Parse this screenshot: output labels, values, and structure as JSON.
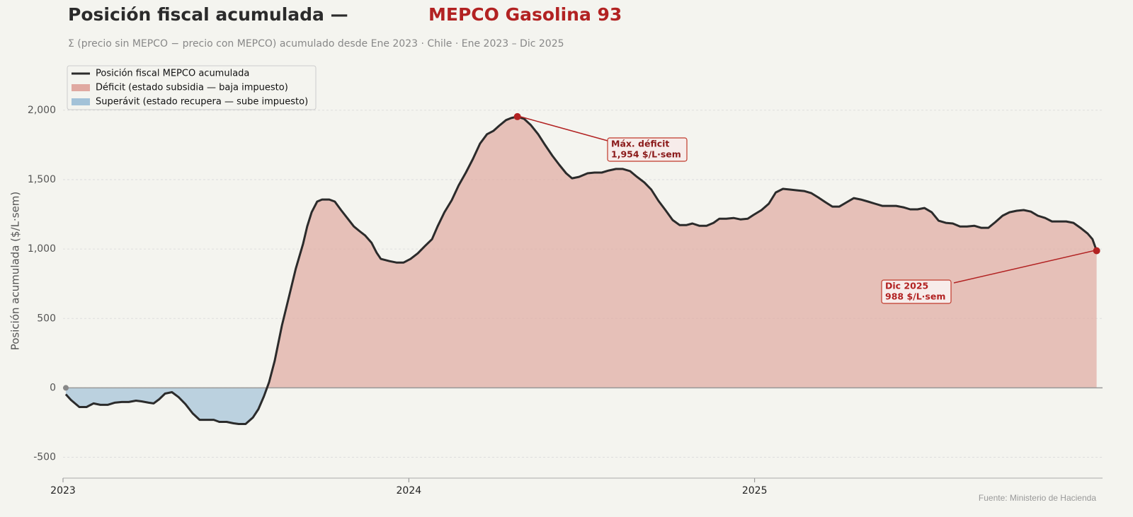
{
  "chart_data": {
    "type": "area_line",
    "title": "Posición fiscal acumulada —",
    "title_highlight": "MEPCO Gasolina 93",
    "subtitle": "Σ (precio sin MEPCO − precio con MEPCO) acumulado desde Ene 2023  ·  Chile  ·  Ene 2023 – Dic 2025",
    "y_label": "Posición acumulada ($/L·sem)",
    "source": "Fuente: Ministerio de Hacienda",
    "xlim": [
      2023,
      2026
    ],
    "xticks": [
      2023,
      2024,
      2025
    ],
    "ylim": [
      -650,
      2300
    ],
    "yticks": [
      {
        "value": -500,
        "label": "-500"
      },
      0,
      500,
      {
        "value": 1000,
        "label": "1,000"
      },
      {
        "value": 1500,
        "label": "1,500"
      },
      {
        "value": 2000,
        "label": "2,000"
      }
    ],
    "grid": true,
    "legend_position": "upper left",
    "legend": [
      {
        "name": "Posición fiscal MEPCO acumulada",
        "color": "#2b2b2b"
      },
      {
        "name": "Déficit (estado subsidia — baja impuesto)",
        "color": "#e0a9a1"
      },
      {
        "name": "Superávit (estado recupera — sube impuesto)",
        "color": "#a3c2d8"
      }
    ],
    "annotations": [
      {
        "lines": [
          "Máx. déficit",
          "1,954 $/L·sem"
        ],
        "color": "#8b1a1a"
      },
      {
        "lines": [
          "Dic 2025",
          "988 $/L·sem"
        ],
        "color": "#b22222"
      }
    ],
    "x": [
      2023.008,
      2023.023,
      2023.047,
      2023.068,
      2023.088,
      2023.108,
      2023.129,
      2023.149,
      2023.17,
      2023.19,
      2023.211,
      2023.227,
      2023.248,
      2023.262,
      2023.278,
      2023.295,
      2023.315,
      2023.334,
      2023.354,
      2023.375,
      2023.395,
      2023.416,
      2023.436,
      2023.452,
      2023.473,
      2023.493,
      2023.508,
      2023.528,
      2023.549,
      2023.565,
      2023.581,
      2023.596,
      2023.612,
      2023.633,
      2023.653,
      2023.673,
      2023.694,
      2023.706,
      2023.719,
      2023.735,
      2023.749,
      2023.77,
      2023.786,
      2023.804,
      2023.825,
      2023.841,
      2023.858,
      2023.874,
      2023.892,
      2023.907,
      2023.919,
      2023.944,
      2023.964,
      2023.985,
      2024.005,
      2024.026,
      2024.046,
      2024.067,
      2024.083,
      2024.103,
      2024.124,
      2024.144,
      2024.165,
      2024.185,
      2024.206,
      2024.226,
      2024.245,
      2024.261,
      2024.281,
      2024.296,
      2024.314,
      2024.333,
      2024.353,
      2024.374,
      2024.394,
      2024.415,
      2024.435,
      2024.455,
      2024.472,
      2024.492,
      2024.517,
      2024.537,
      2024.558,
      2024.578,
      2024.599,
      2024.619,
      2024.64,
      2024.66,
      2024.681,
      2024.701,
      2024.722,
      2024.742,
      2024.763,
      2024.783,
      2024.803,
      2024.82,
      2024.84,
      2024.861,
      2024.881,
      2024.898,
      2024.918,
      2024.939,
      2024.959,
      2024.98,
      2024.996,
      2025.02,
      2025.041,
      2025.061,
      2025.082,
      2025.102,
      2025.123,
      2025.143,
      2025.164,
      2025.184,
      2025.205,
      2025.225,
      2025.245,
      2025.266,
      2025.287,
      2025.307,
      2025.328,
      2025.348,
      2025.369,
      2025.389,
      2025.409,
      2025.43,
      2025.45,
      2025.471,
      2025.491,
      2025.512,
      2025.532,
      2025.553,
      2025.573,
      2025.594,
      2025.614,
      2025.635,
      2025.655,
      2025.676,
      2025.696,
      2025.717,
      2025.737,
      2025.758,
      2025.778,
      2025.799,
      2025.819,
      2025.84,
      2025.86,
      2025.881,
      2025.901,
      2025.922,
      2025.942,
      2025.963,
      2025.977,
      2025.989
    ],
    "values": [
      -46,
      -87,
      -138,
      -138,
      -112,
      -122,
      -122,
      -107,
      -102,
      -102,
      -92,
      -97,
      -107,
      -112,
      -82,
      -41,
      -31,
      -66,
      -117,
      -184,
      -230,
      -230,
      -230,
      -245,
      -245,
      -255,
      -260,
      -260,
      -214,
      -153,
      -61,
      41,
      194,
      449,
      653,
      857,
      1036,
      1163,
      1265,
      1342,
      1357,
      1357,
      1342,
      1281,
      1214,
      1163,
      1128,
      1097,
      1046,
      974,
      929,
      913,
      903,
      903,
      929,
      969,
      1020,
      1071,
      1163,
      1265,
      1352,
      1459,
      1551,
      1648,
      1760,
      1827,
      1852,
      1888,
      1929,
      1944,
      1954,
      1939,
      1893,
      1827,
      1750,
      1673,
      1607,
      1546,
      1510,
      1520,
      1546,
      1551,
      1551,
      1566,
      1577,
      1577,
      1561,
      1520,
      1480,
      1429,
      1347,
      1281,
      1209,
      1173,
      1173,
      1184,
      1168,
      1168,
      1189,
      1219,
      1219,
      1224,
      1214,
      1219,
      1245,
      1281,
      1327,
      1408,
      1434,
      1429,
      1423,
      1418,
      1403,
      1372,
      1337,
      1306,
      1306,
      1337,
      1367,
      1357,
      1342,
      1327,
      1311,
      1311,
      1311,
      1301,
      1286,
      1286,
      1296,
      1265,
      1204,
      1189,
      1184,
      1163,
      1163,
      1168,
      1153,
      1153,
      1194,
      1240,
      1265,
      1276,
      1281,
      1270,
      1240,
      1224,
      1199,
      1199,
      1199,
      1189,
      1153,
      1112,
      1071,
      988
    ]
  }
}
